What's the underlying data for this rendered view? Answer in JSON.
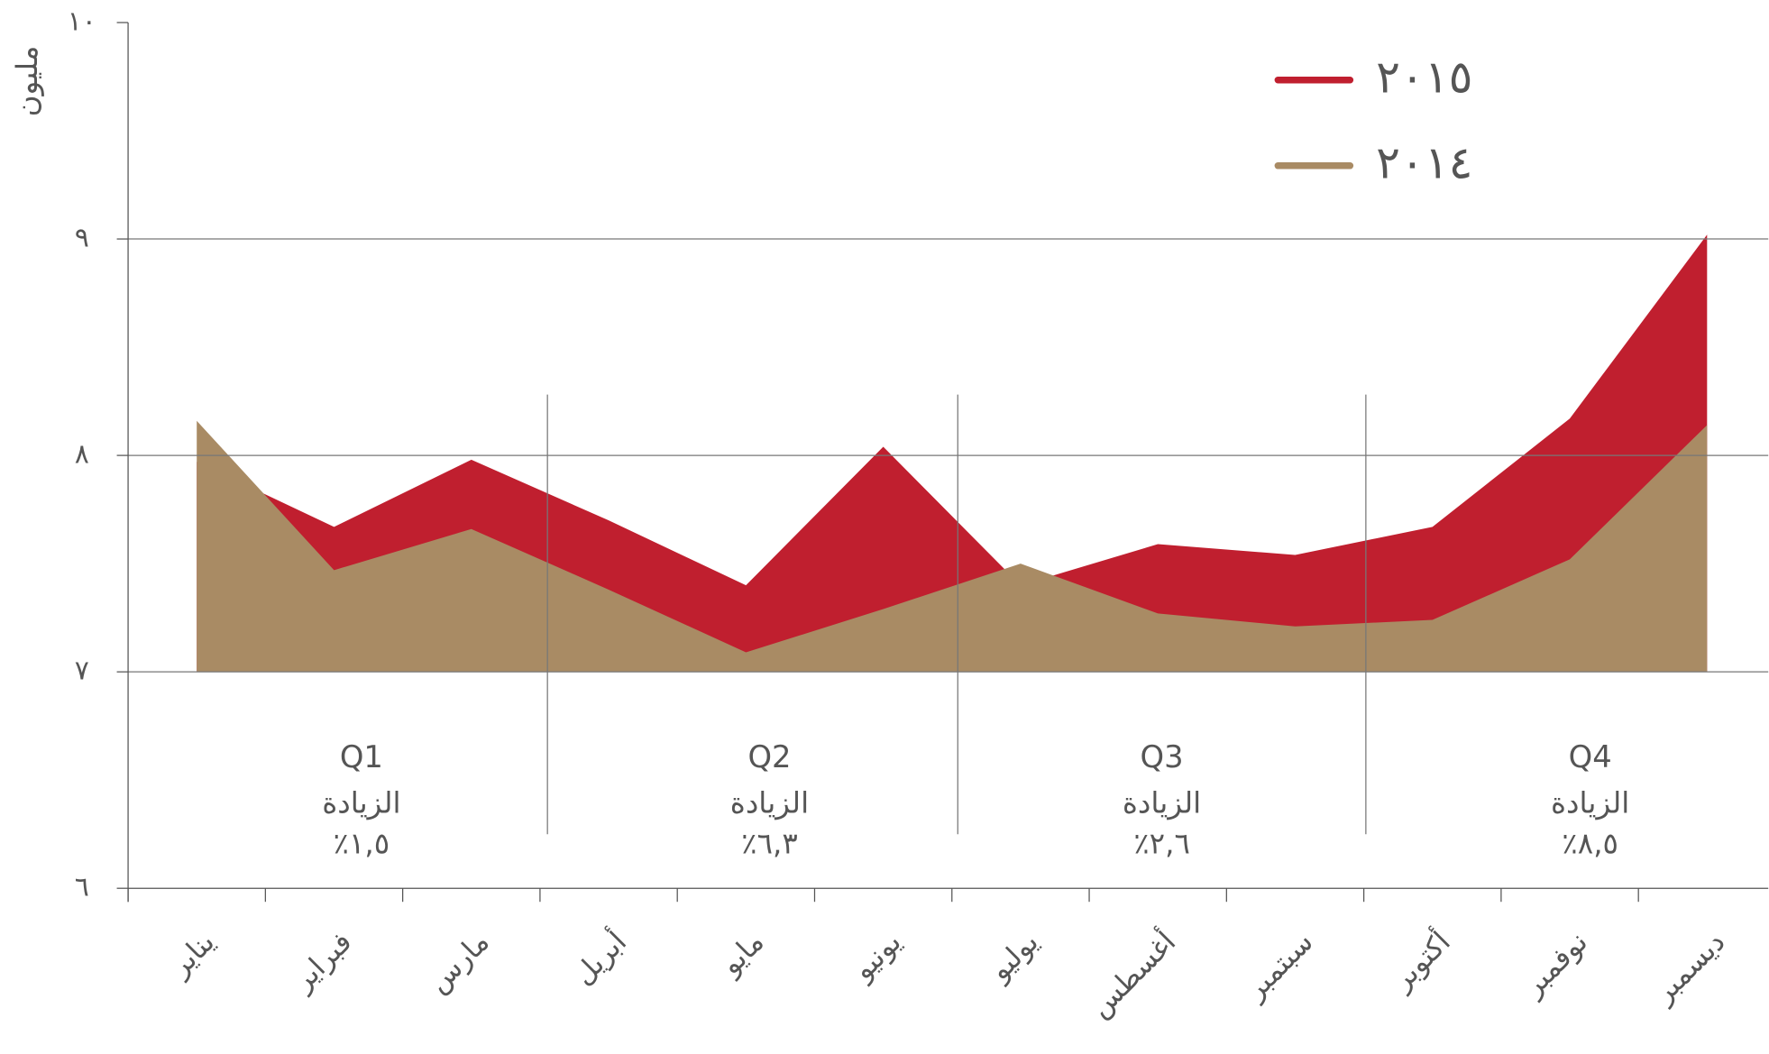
{
  "chart_data": {
    "type": "area",
    "y_label": "مليون",
    "categories": [
      "يناير",
      "فبراير",
      "مارس",
      "أبريل",
      "مايو",
      "يونيو",
      "يوليو",
      "أغسطس",
      "سبتمبر",
      "أكتوبر",
      "نوفمبر",
      "ديسمبر"
    ],
    "series": [
      {
        "name": "٢٠١٥",
        "color": "#c01f2f",
        "values": [
          7.97,
          7.67,
          7.98,
          7.7,
          7.4,
          8.04,
          7.4,
          7.59,
          7.54,
          7.67,
          8.17,
          9.02
        ]
      },
      {
        "name": "٢٠١٤",
        "color": "#a98b64",
        "values": [
          8.16,
          7.47,
          7.66,
          7.38,
          7.09,
          7.29,
          7.5,
          7.27,
          7.21,
          7.24,
          7.52,
          8.14
        ]
      }
    ],
    "ylim": [
      6,
      10
    ],
    "yticks": [
      {
        "value": 6,
        "label": "٦"
      },
      {
        "value": 7,
        "label": "٧"
      },
      {
        "value": 8,
        "label": "٨"
      },
      {
        "value": 9,
        "label": "٩"
      },
      {
        "value": 10,
        "label": "١٠"
      }
    ],
    "grid": true,
    "legend": "top-right",
    "annotations": [
      {
        "quarter": "Q1",
        "text": "الزيادة",
        "change": "٪١,٥"
      },
      {
        "quarter": "Q2",
        "text": "الزيادة",
        "change": "٪٦,٣"
      },
      {
        "quarter": "Q3",
        "text": "الزيادة",
        "change": "٪٢,٦"
      },
      {
        "quarter": "Q4",
        "text": "الزيادة",
        "change": "٪٨,٥"
      }
    ]
  }
}
